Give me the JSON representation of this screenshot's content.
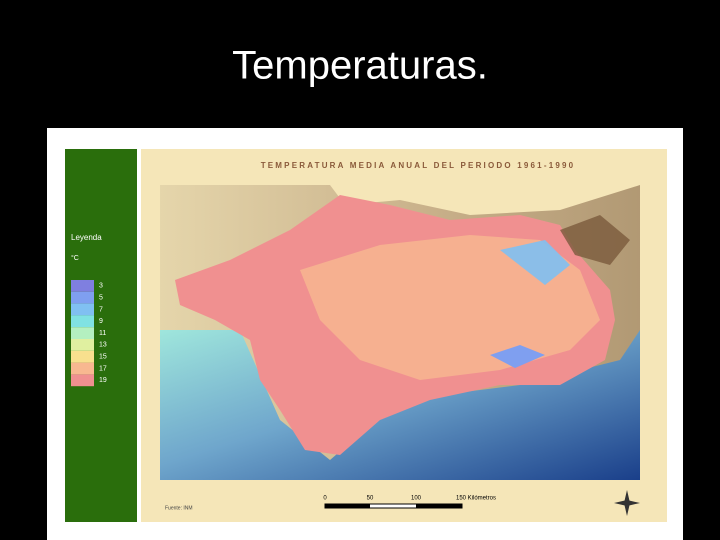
{
  "slide_title": "Temperaturas.",
  "map": {
    "title": "TEMPERATURA MEDIA ANUAL DEL PERIODO 1961-1990",
    "legend": {
      "heading": "Leyenda",
      "unit": "°C",
      "items": [
        {
          "label": 3,
          "color": "#7f7fe0"
        },
        {
          "label": 5,
          "color": "#7f9ff0"
        },
        {
          "label": 7,
          "color": "#80c0f2"
        },
        {
          "label": 9,
          "color": "#80e2e2"
        },
        {
          "label": 11,
          "color": "#b4f0c0"
        },
        {
          "label": 13,
          "color": "#e0f0a0"
        },
        {
          "label": 15,
          "color": "#f8e08e"
        },
        {
          "label": 17,
          "color": "#f8b890"
        },
        {
          "label": 19,
          "color": "#f09090"
        }
      ]
    },
    "scale": {
      "labels": [
        "0",
        "50",
        "100",
        "150 Kilómetros"
      ]
    },
    "source": "Fuente: INM"
  }
}
